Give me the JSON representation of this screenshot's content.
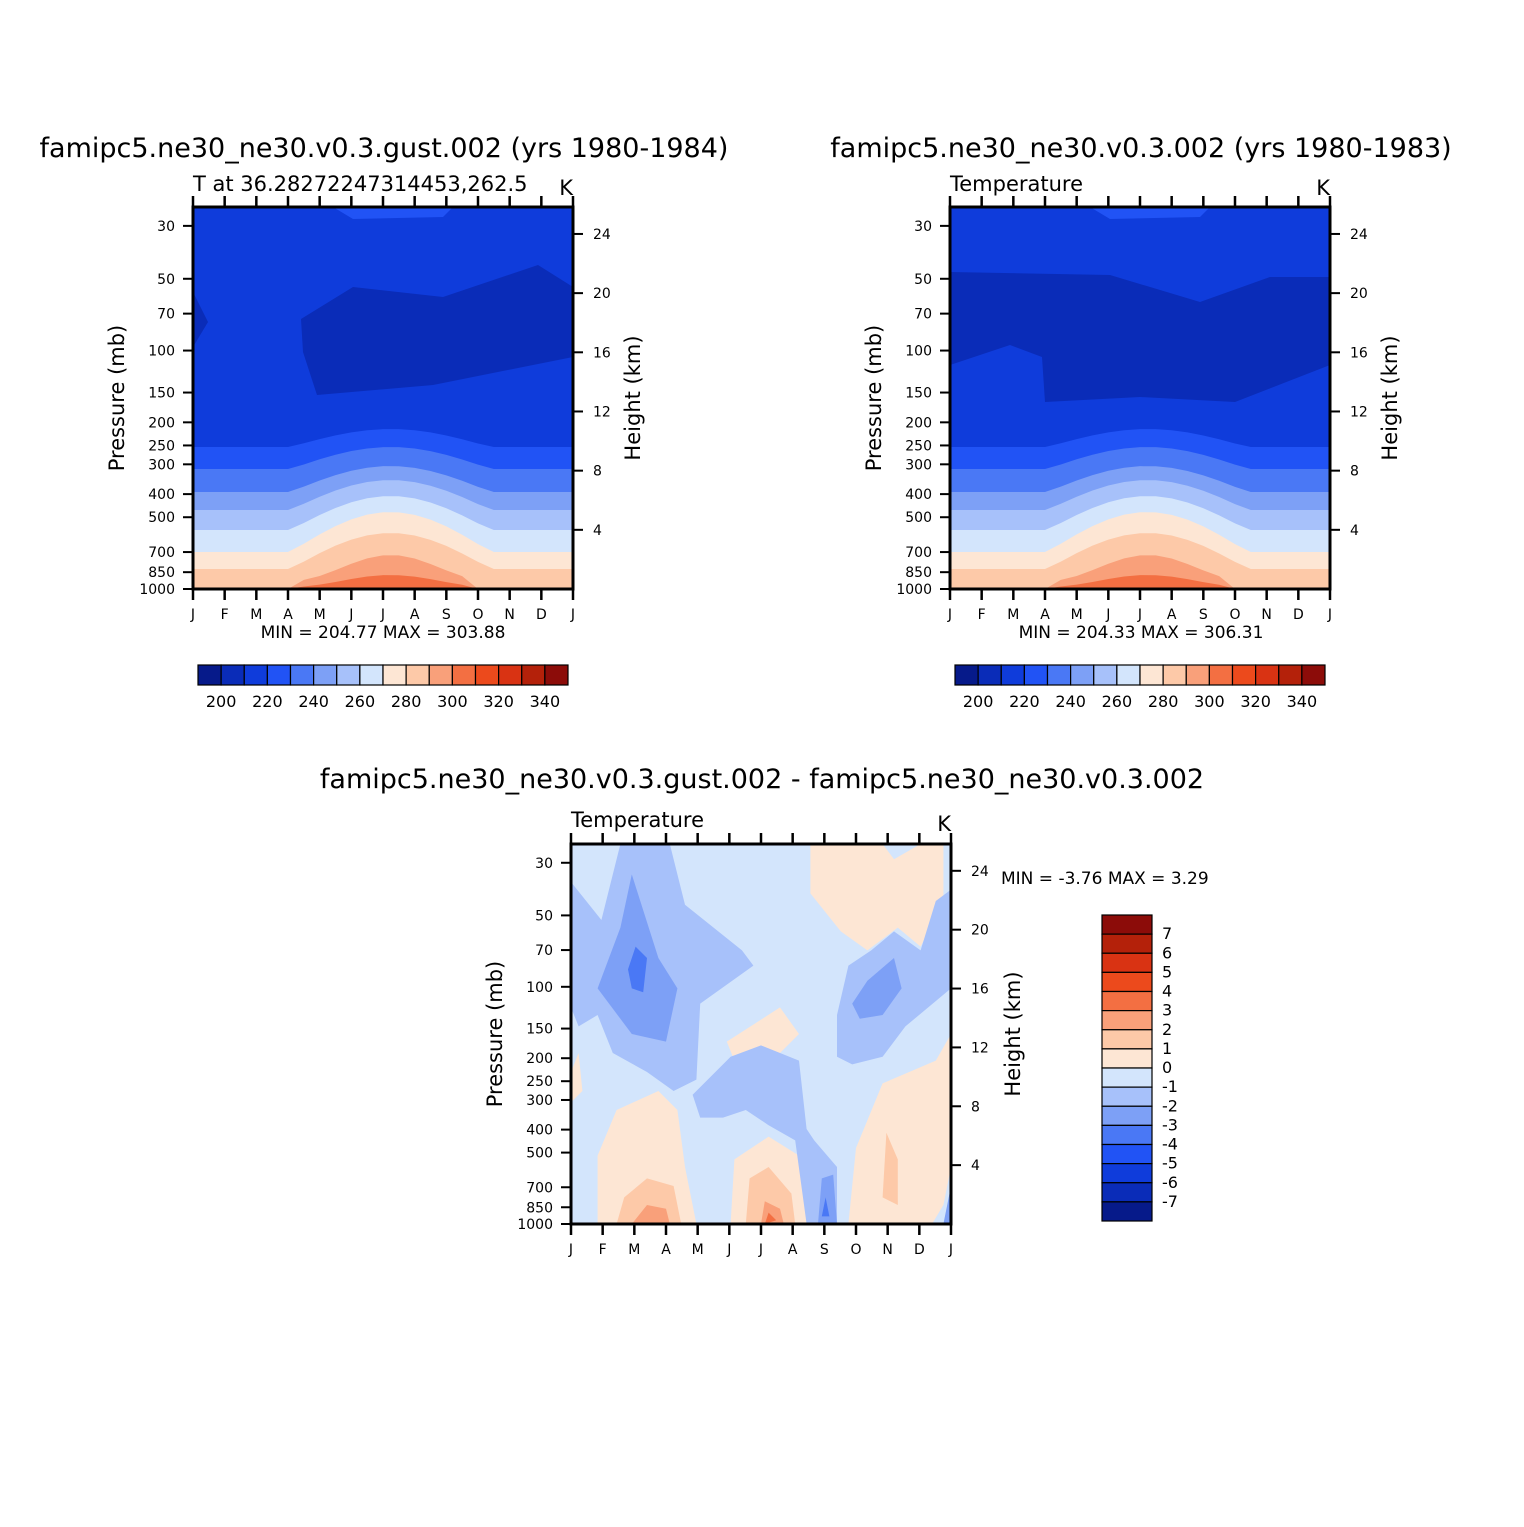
{
  "chart_data": [
    {
      "type": "heatmap",
      "title": "famipc5.ne30_ne30.v0.3.gust.002 (yrs 1980-1984)",
      "subtitle": "T at 36.28272247314453,262.5",
      "units": "K",
      "ylabel": "Pressure (mb)",
      "ylabel_right": "Height (km)",
      "y_scale": "log",
      "ylim": [
        1000,
        25
      ],
      "yticks": [
        "30",
        "50",
        "70",
        "100",
        "150",
        "200",
        "250",
        "300",
        "400",
        "500",
        "700",
        "850",
        "1000"
      ],
      "yticks_right": [
        "4",
        "8",
        "12",
        "16",
        "20",
        "24"
      ],
      "x": [
        "J",
        "F",
        "M",
        "A",
        "M",
        "J",
        "J",
        "A",
        "S",
        "O",
        "N",
        "D",
        "J"
      ],
      "min_max_text": "MIN = 204.77 MAX = 303.88",
      "min": 204.77,
      "max": 303.88,
      "colorbar": {
        "orientation": "horizontal",
        "labels": [
          "200",
          "220",
          "240",
          "260",
          "280",
          "300",
          "320",
          "340"
        ],
        "levels": [
          190,
          200,
          210,
          220,
          230,
          240,
          250,
          260,
          270,
          280,
          290,
          300,
          310,
          320,
          330,
          340
        ],
        "colors": [
          "#061a8a",
          "#0a2cb8",
          "#0f3cdb",
          "#2153f5",
          "#4a78f5",
          "#7da0f6",
          "#a7c1fa",
          "#d3e5fc",
          "#fde6d4",
          "#fdc9a8",
          "#f9a07a",
          "#f36f42",
          "#ec4a1c",
          "#d93313",
          "#b4210a",
          "#8c0c09"
        ]
      }
    },
    {
      "type": "heatmap",
      "title": "famipc5.ne30_ne30.v0.3.002 (yrs 1980-1983)",
      "subtitle": "Temperature",
      "units": "K",
      "ylabel": "Pressure (mb)",
      "ylabel_right": "Height (km)",
      "y_scale": "log",
      "ylim": [
        1000,
        25
      ],
      "yticks": [
        "30",
        "50",
        "70",
        "100",
        "150",
        "200",
        "250",
        "300",
        "400",
        "500",
        "700",
        "850",
        "1000"
      ],
      "yticks_right": [
        "4",
        "8",
        "12",
        "16",
        "20",
        "24"
      ],
      "x": [
        "J",
        "F",
        "M",
        "A",
        "M",
        "J",
        "J",
        "A",
        "S",
        "O",
        "N",
        "D",
        "J"
      ],
      "min_max_text": "MIN = 204.33 MAX = 306.31",
      "min": 204.33,
      "max": 306.31,
      "colorbar": {
        "orientation": "horizontal",
        "labels": [
          "200",
          "220",
          "240",
          "260",
          "280",
          "300",
          "320",
          "340"
        ],
        "levels": [
          190,
          200,
          210,
          220,
          230,
          240,
          250,
          260,
          270,
          280,
          290,
          300,
          310,
          320,
          330,
          340
        ],
        "colors": [
          "#061a8a",
          "#0a2cb8",
          "#0f3cdb",
          "#2153f5",
          "#4a78f5",
          "#7da0f6",
          "#a7c1fa",
          "#d3e5fc",
          "#fde6d4",
          "#fdc9a8",
          "#f9a07a",
          "#f36f42",
          "#ec4a1c",
          "#d93313",
          "#b4210a",
          "#8c0c09"
        ]
      }
    },
    {
      "type": "heatmap",
      "title": "famipc5.ne30_ne30.v0.3.gust.002 - famipc5.ne30_ne30.v0.3.002",
      "subtitle": "Temperature",
      "units": "K",
      "ylabel": "Pressure (mb)",
      "ylabel_right": "Height (km)",
      "y_scale": "log",
      "ylim": [
        1000,
        25
      ],
      "yticks": [
        "30",
        "50",
        "70",
        "100",
        "150",
        "200",
        "250",
        "300",
        "400",
        "500",
        "700",
        "850",
        "1000"
      ],
      "yticks_right": [
        "4",
        "8",
        "12",
        "16",
        "20",
        "24"
      ],
      "x": [
        "J",
        "F",
        "M",
        "A",
        "M",
        "J",
        "J",
        "A",
        "S",
        "O",
        "N",
        "D",
        "J"
      ],
      "min_max_text": "MIN = -3.76 MAX = 3.29",
      "min": -3.76,
      "max": 3.29,
      "colorbar": {
        "orientation": "vertical",
        "labels": [
          "7",
          "6",
          "5",
          "4",
          "3",
          "2",
          "1",
          "0",
          "-1",
          "-2",
          "-3",
          "-4",
          "-5",
          "-6",
          "-7"
        ],
        "colors": [
          "#8c0c09",
          "#b4210a",
          "#d93313",
          "#ec4a1c",
          "#f36f42",
          "#f9a07a",
          "#fdc9a8",
          "#fde6d4",
          "#d3e5fc",
          "#a7c1fa",
          "#7da0f6",
          "#4a78f5",
          "#2153f5",
          "#0f3cdb",
          "#0a2cb8",
          "#061a8a"
        ]
      }
    }
  ]
}
